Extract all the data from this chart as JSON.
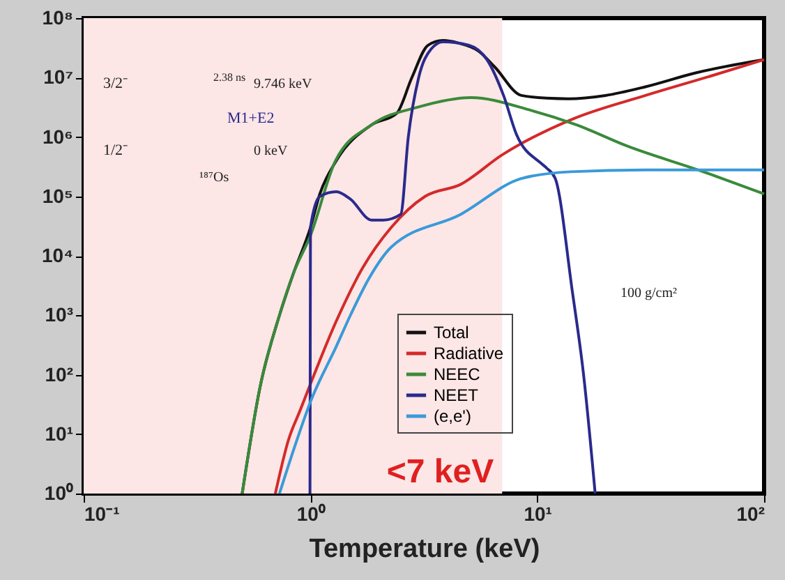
{
  "chart_data": {
    "type": "line",
    "xlabel": "Temperature (keV)",
    "log": "xy",
    "grid": false,
    "legend": "bottom",
    "marker": "none",
    "line_style": "solid",
    "xlim": [
      0.1,
      100
    ],
    "ylim": [
      1,
      100000000
    ],
    "xticks": [
      {
        "value": 0.1,
        "label": "10⁻¹"
      },
      {
        "value": 1,
        "label": "10⁰"
      },
      {
        "value": 10,
        "label": "10¹"
      },
      {
        "value": 100,
        "label": "10²"
      }
    ],
    "yticks": [
      {
        "value": 1,
        "label": "10⁰"
      },
      {
        "value": 10,
        "label": "10¹"
      },
      {
        "value": 100,
        "label": "10²"
      },
      {
        "value": 1000,
        "label": "10³"
      },
      {
        "value": 10000,
        "label": "10⁴"
      },
      {
        "value": 100000,
        "label": "10⁵"
      },
      {
        "value": 1000000,
        "label": "10⁶"
      },
      {
        "value": 10000000,
        "label": "10⁷"
      },
      {
        "value": 100000000,
        "label": "10⁸"
      }
    ],
    "bands": [
      {
        "axis": "x",
        "from": 0.1,
        "to": 7,
        "label": "<7 keV",
        "color": "#fce6e6"
      }
    ],
    "annotations": [
      "3/2⁻",
      "2.38 ns",
      "9.746 keV",
      "M1+E2",
      "1/2⁻",
      "0 keV",
      "¹⁸⁷Os",
      "100 g/cm²"
    ],
    "series": [
      {
        "name": "Total",
        "color": "#111111",
        "x": [
          0.5,
          0.6,
          0.73,
          0.84,
          1.0,
          1.1,
          1.3,
          1.86,
          2.4,
          2.8,
          3.3,
          3.84,
          4.5,
          5.5,
          6.5,
          8.5,
          11,
          13.7,
          20,
          30,
          50,
          100
        ],
        "values": [
          1,
          63,
          1000,
          5000,
          30000,
          110000,
          400000,
          1600000,
          2500000,
          10000000,
          35000000,
          42000000,
          38000000,
          28000000,
          15000000,
          5000000,
          4500000,
          4400000,
          5000000,
          7000000,
          12000000,
          20000000
        ]
      },
      {
        "name": "Radiative",
        "color": "#d42a2a",
        "x": [
          0.7,
          0.8,
          0.9,
          1.0,
          1.3,
          1.7,
          2.27,
          3.2,
          4.6,
          7,
          14.3,
          30,
          60,
          100
        ],
        "values": [
          1,
          8,
          25,
          70,
          800,
          6300,
          30000,
          100000,
          160000,
          500000,
          2000000,
          5000000,
          11000000,
          20000000
        ]
      },
      {
        "name": "NEEC",
        "color": "#3a8a3a",
        "x": [
          0.5,
          0.6,
          0.73,
          0.84,
          1.0,
          1.29,
          1.86,
          3.0,
          5.1,
          9.4,
          14.9,
          25,
          51,
          100
        ],
        "values": [
          1,
          63,
          1000,
          5000,
          22000,
          400000,
          1600000,
          3200000,
          4600000,
          2800000,
          1600000,
          700000,
          280000,
          110000
        ]
      },
      {
        "name": "NEET",
        "color": "#2a2a8c",
        "x": [
          0.995,
          1.0,
          1.1,
          1.3,
          1.5,
          1.86,
          2.1,
          2.5,
          2.7,
          3.0,
          3.4,
          3.84,
          5.0,
          6.0,
          7.1,
          8.1,
          10.4,
          11,
          12,
          14.3,
          16,
          18
        ],
        "values": [
          1,
          30000,
          100000,
          120000,
          90000,
          40000,
          40000,
          50000,
          1000000,
          10000000,
          30000000,
          40000000,
          35000000,
          20000000,
          5000000,
          1100000,
          360000,
          300000,
          200000,
          2400,
          100,
          1
        ]
      },
      {
        "name": "(e,e')",
        "color": "#3a9ad8",
        "x": [
          0.73,
          0.85,
          1.0,
          1.3,
          1.5,
          1.8,
          2.27,
          4.6,
          8.5,
          14,
          30,
          100
        ],
        "values": [
          1,
          6,
          35,
          300,
          1000,
          4000,
          14000,
          50000,
          200000,
          260000,
          280000,
          280000
        ]
      }
    ]
  }
}
